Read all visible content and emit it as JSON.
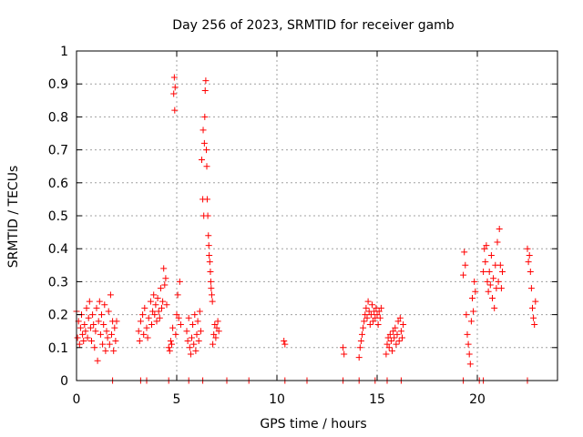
{
  "chart_data": {
    "type": "scatter",
    "title": "Day 256 of 2023, SRMTID for receiver gamb",
    "xlabel": "GPS time / hours",
    "ylabel": "SRMTID / TECUs",
    "xlim": [
      0,
      24
    ],
    "ylim": [
      0,
      1
    ],
    "x_ticks": [
      0,
      5,
      10,
      15,
      20
    ],
    "x_tick_labels": [
      "0",
      "5",
      "10",
      "15",
      "20"
    ],
    "y_ticks": [
      0,
      0.1,
      0.2,
      0.3,
      0.4,
      0.5,
      0.6,
      0.7,
      0.8,
      0.9,
      1
    ],
    "y_tick_labels": [
      "0",
      "0.1",
      "0.2",
      "0.3",
      "0.4",
      "0.5",
      "0.6",
      "0.7",
      "0.8",
      "0.9",
      "1"
    ],
    "grid": true,
    "marker": "+",
    "color": "#ff0000",
    "series": [
      {
        "name": "SRMTID",
        "points": [
          [
            0.0,
            0.21
          ],
          [
            0.05,
            0.13
          ],
          [
            0.1,
            0.18
          ],
          [
            0.15,
            0.11
          ],
          [
            0.2,
            0.16
          ],
          [
            0.25,
            0.2
          ],
          [
            0.3,
            0.14
          ],
          [
            0.35,
            0.12
          ],
          [
            0.4,
            0.17
          ],
          [
            0.45,
            0.15
          ],
          [
            0.5,
            0.22
          ],
          [
            0.55,
            0.13
          ],
          [
            0.6,
            0.19
          ],
          [
            0.65,
            0.24
          ],
          [
            0.7,
            0.16
          ],
          [
            0.75,
            0.12
          ],
          [
            0.8,
            0.2
          ],
          [
            0.85,
            0.17
          ],
          [
            0.9,
            0.1
          ],
          [
            0.95,
            0.15
          ],
          [
            1.0,
            0.22
          ],
          [
            1.05,
            0.06
          ],
          [
            1.1,
            0.18
          ],
          [
            1.15,
            0.24
          ],
          [
            1.2,
            0.14
          ],
          [
            1.25,
            0.2
          ],
          [
            1.3,
            0.11
          ],
          [
            1.35,
            0.17
          ],
          [
            1.4,
            0.23
          ],
          [
            1.45,
            0.09
          ],
          [
            1.5,
            0.15
          ],
          [
            1.55,
            0.13
          ],
          [
            1.6,
            0.21
          ],
          [
            1.65,
            0.11
          ],
          [
            1.7,
            0.26
          ],
          [
            1.75,
            0.14
          ],
          [
            1.8,
            0.18
          ],
          [
            1.85,
            0.09
          ],
          [
            1.9,
            0.16
          ],
          [
            1.95,
            0.12
          ],
          [
            2.0,
            0.18
          ],
          [
            3.1,
            0.15
          ],
          [
            3.15,
            0.12
          ],
          [
            3.2,
            0.18
          ],
          [
            3.3,
            0.2
          ],
          [
            3.35,
            0.14
          ],
          [
            3.4,
            0.22
          ],
          [
            3.5,
            0.16
          ],
          [
            3.55,
            0.13
          ],
          [
            3.6,
            0.19
          ],
          [
            3.7,
            0.24
          ],
          [
            3.75,
            0.17
          ],
          [
            3.8,
            0.21
          ],
          [
            3.85,
            0.26
          ],
          [
            3.9,
            0.2
          ],
          [
            3.95,
            0.23
          ],
          [
            4.0,
            0.18
          ],
          [
            4.05,
            0.25
          ],
          [
            4.1,
            0.21
          ],
          [
            4.15,
            0.19
          ],
          [
            4.2,
            0.28
          ],
          [
            4.25,
            0.22
          ],
          [
            4.3,
            0.24
          ],
          [
            4.35,
            0.34
          ],
          [
            4.4,
            0.29
          ],
          [
            4.45,
            0.31
          ],
          [
            4.5,
            0.23
          ],
          [
            4.6,
            0.1
          ],
          [
            4.65,
            0.09
          ],
          [
            4.7,
            0.12
          ],
          [
            4.75,
            0.11
          ],
          [
            4.8,
            0.16
          ],
          [
            4.85,
            0.87
          ],
          [
            4.88,
            0.92
          ],
          [
            4.9,
            0.82
          ],
          [
            4.92,
            0.89
          ],
          [
            4.95,
            0.14
          ],
          [
            5.0,
            0.2
          ],
          [
            5.05,
            0.26
          ],
          [
            5.1,
            0.19
          ],
          [
            5.15,
            0.3
          ],
          [
            5.2,
            0.17
          ],
          [
            5.5,
            0.15
          ],
          [
            5.55,
            0.12
          ],
          [
            5.6,
            0.19
          ],
          [
            5.65,
            0.1
          ],
          [
            5.7,
            0.08
          ],
          [
            5.75,
            0.13
          ],
          [
            5.8,
            0.17
          ],
          [
            5.85,
            0.11
          ],
          [
            5.9,
            0.2
          ],
          [
            5.95,
            0.09
          ],
          [
            6.0,
            0.14
          ],
          [
            6.05,
            0.18
          ],
          [
            6.1,
            0.12
          ],
          [
            6.15,
            0.21
          ],
          [
            6.2,
            0.15
          ],
          [
            6.25,
            0.67
          ],
          [
            6.3,
            0.55
          ],
          [
            6.32,
            0.76
          ],
          [
            6.35,
            0.5
          ],
          [
            6.38,
            0.72
          ],
          [
            6.4,
            0.8
          ],
          [
            6.42,
            0.88
          ],
          [
            6.45,
            0.91
          ],
          [
            6.48,
            0.7
          ],
          [
            6.5,
            0.65
          ],
          [
            6.52,
            0.55
          ],
          [
            6.55,
            0.5
          ],
          [
            6.58,
            0.44
          ],
          [
            6.6,
            0.41
          ],
          [
            6.62,
            0.38
          ],
          [
            6.65,
            0.36
          ],
          [
            6.68,
            0.33
          ],
          [
            6.7,
            0.3
          ],
          [
            6.72,
            0.28
          ],
          [
            6.75,
            0.26
          ],
          [
            6.78,
            0.24
          ],
          [
            6.8,
            0.11
          ],
          [
            6.85,
            0.14
          ],
          [
            6.9,
            0.17
          ],
          [
            6.95,
            0.13
          ],
          [
            7.0,
            0.16
          ],
          [
            7.05,
            0.18
          ],
          [
            7.1,
            0.15
          ],
          [
            10.35,
            0.12
          ],
          [
            10.4,
            0.11
          ],
          [
            13.3,
            0.1
          ],
          [
            13.35,
            0.08
          ],
          [
            14.1,
            0.07
          ],
          [
            14.15,
            0.1
          ],
          [
            14.2,
            0.12
          ],
          [
            14.25,
            0.14
          ],
          [
            14.3,
            0.16
          ],
          [
            14.35,
            0.18
          ],
          [
            14.4,
            0.2
          ],
          [
            14.45,
            0.22
          ],
          [
            14.5,
            0.19
          ],
          [
            14.55,
            0.24
          ],
          [
            14.6,
            0.21
          ],
          [
            14.65,
            0.17
          ],
          [
            14.7,
            0.2
          ],
          [
            14.75,
            0.23
          ],
          [
            14.8,
            0.18
          ],
          [
            14.85,
            0.21
          ],
          [
            14.9,
            0.19
          ],
          [
            14.95,
            0.22
          ],
          [
            15.0,
            0.2
          ],
          [
            15.05,
            0.17
          ],
          [
            15.1,
            0.21
          ],
          [
            15.15,
            0.19
          ],
          [
            15.2,
            0.22
          ],
          [
            15.45,
            0.08
          ],
          [
            15.5,
            0.11
          ],
          [
            15.55,
            0.13
          ],
          [
            15.6,
            0.1
          ],
          [
            15.65,
            0.14
          ],
          [
            15.7,
            0.12
          ],
          [
            15.75,
            0.09
          ],
          [
            15.8,
            0.15
          ],
          [
            15.85,
            0.13
          ],
          [
            15.9,
            0.16
          ],
          [
            15.95,
            0.11
          ],
          [
            16.0,
            0.14
          ],
          [
            16.05,
            0.18
          ],
          [
            16.1,
            0.12
          ],
          [
            16.15,
            0.19
          ],
          [
            16.2,
            0.15
          ],
          [
            16.25,
            0.13
          ],
          [
            16.3,
            0.17
          ],
          [
            19.3,
            0.32
          ],
          [
            19.35,
            0.39
          ],
          [
            19.4,
            0.35
          ],
          [
            19.45,
            0.2
          ],
          [
            19.5,
            0.14
          ],
          [
            19.55,
            0.11
          ],
          [
            19.6,
            0.08
          ],
          [
            19.65,
            0.05
          ],
          [
            19.7,
            0.18
          ],
          [
            19.75,
            0.25
          ],
          [
            19.8,
            0.21
          ],
          [
            19.85,
            0.3
          ],
          [
            19.9,
            0.27
          ],
          [
            20.3,
            0.33
          ],
          [
            20.35,
            0.4
          ],
          [
            20.4,
            0.36
          ],
          [
            20.45,
            0.41
          ],
          [
            20.5,
            0.3
          ],
          [
            20.55,
            0.27
          ],
          [
            20.6,
            0.33
          ],
          [
            20.65,
            0.29
          ],
          [
            20.7,
            0.38
          ],
          [
            20.75,
            0.25
          ],
          [
            20.8,
            0.31
          ],
          [
            20.85,
            0.22
          ],
          [
            20.9,
            0.35
          ],
          [
            20.95,
            0.28
          ],
          [
            21.0,
            0.42
          ],
          [
            21.05,
            0.3
          ],
          [
            21.1,
            0.46
          ],
          [
            21.15,
            0.35
          ],
          [
            21.2,
            0.28
          ],
          [
            21.25,
            0.33
          ],
          [
            22.5,
            0.4
          ],
          [
            22.55,
            0.36
          ],
          [
            22.6,
            0.38
          ],
          [
            22.65,
            0.33
          ],
          [
            22.7,
            0.28
          ],
          [
            22.75,
            0.22
          ],
          [
            22.8,
            0.19
          ],
          [
            22.85,
            0.17
          ],
          [
            22.9,
            0.24
          ],
          [
            1.8,
            0.0
          ],
          [
            3.2,
            0.0
          ],
          [
            3.5,
            0.0
          ],
          [
            4.6,
            0.0
          ],
          [
            5.6,
            0.0
          ],
          [
            6.3,
            0.0
          ],
          [
            7.5,
            0.0
          ],
          [
            8.6,
            0.0
          ],
          [
            10.4,
            0.0
          ],
          [
            11.5,
            0.0
          ],
          [
            13.3,
            0.0
          ],
          [
            14.1,
            0.0
          ],
          [
            14.9,
            0.0
          ],
          [
            15.5,
            0.0
          ],
          [
            16.2,
            0.0
          ],
          [
            19.3,
            0.0
          ],
          [
            20.1,
            0.0
          ],
          [
            20.3,
            0.0
          ],
          [
            22.5,
            0.0
          ]
        ]
      }
    ]
  }
}
